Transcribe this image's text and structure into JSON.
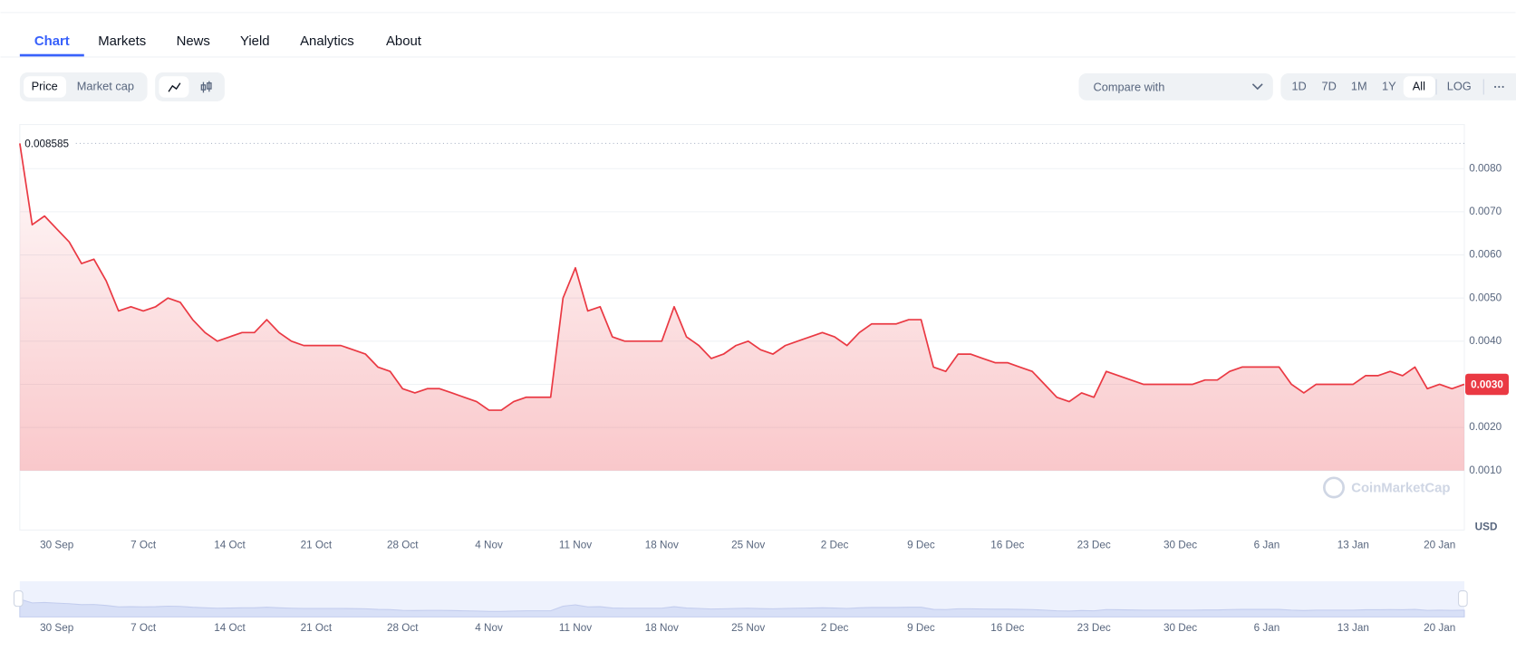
{
  "nav": {
    "tabs": [
      "Chart",
      "Markets",
      "News",
      "Yield",
      "Analytics",
      "About"
    ],
    "active": 0
  },
  "toolbar": {
    "modes": [
      "Price",
      "Market cap"
    ],
    "active_mode": 0,
    "compare": "Compare with",
    "ranges": [
      "1D",
      "7D",
      "1M",
      "1Y",
      "All"
    ],
    "active_range": 4,
    "log": "LOG"
  },
  "watermark": "CoinMarketCap",
  "chart_data": {
    "type": "line",
    "color": "#ea3943",
    "y_unit": "USD",
    "max_label": 0.008585,
    "current_price": {
      "value": 0.003,
      "label": "0.0030"
    },
    "ylim": [
      -0.0004,
      0.009
    ],
    "yticks": [
      {
        "value": 0.001,
        "label": "0.0010"
      },
      {
        "value": 0.002,
        "label": "0.0020"
      },
      {
        "value": 0.003,
        "label": "0.0030"
      },
      {
        "value": 0.004,
        "label": "0.0040"
      },
      {
        "value": 0.005,
        "label": "0.0050"
      },
      {
        "value": 0.006,
        "label": "0.0060"
      },
      {
        "value": 0.007,
        "label": "0.0070"
      },
      {
        "value": 0.008,
        "label": "0.0080"
      }
    ],
    "grid": true,
    "xticks": [
      "30 Sep",
      "7 Oct",
      "14 Oct",
      "21 Oct",
      "28 Oct",
      "4 Nov",
      "11 Nov",
      "18 Nov",
      "25 Nov",
      "2 Dec",
      "9 Dec",
      "16 Dec",
      "23 Dec",
      "30 Dec",
      "6 Jan",
      "13 Jan",
      "20 Jan"
    ],
    "x": [
      "27 Sep",
      "28 Sep",
      "29 Sep",
      "30 Sep",
      "1 Oct",
      "2 Oct",
      "3 Oct",
      "4 Oct",
      "5 Oct",
      "6 Oct",
      "7 Oct",
      "8 Oct",
      "9 Oct",
      "10 Oct",
      "11 Oct",
      "12 Oct",
      "13 Oct",
      "14 Oct",
      "15 Oct",
      "16 Oct",
      "17 Oct",
      "18 Oct",
      "19 Oct",
      "20 Oct",
      "21 Oct",
      "22 Oct",
      "23 Oct",
      "24 Oct",
      "25 Oct",
      "26 Oct",
      "27 Oct",
      "28 Oct",
      "29 Oct",
      "30 Oct",
      "31 Oct",
      "1 Nov",
      "2 Nov",
      "3 Nov",
      "4 Nov",
      "5 Nov",
      "6 Nov",
      "7 Nov",
      "8 Nov",
      "9 Nov",
      "10 Nov",
      "11 Nov",
      "12 Nov",
      "13 Nov",
      "14 Nov",
      "15 Nov",
      "16 Nov",
      "17 Nov",
      "18 Nov",
      "19 Nov",
      "20 Nov",
      "21 Nov",
      "22 Nov",
      "23 Nov",
      "24 Nov",
      "25 Nov",
      "26 Nov",
      "27 Nov",
      "28 Nov",
      "29 Nov",
      "30 Nov",
      "1 Dec",
      "2 Dec",
      "3 Dec",
      "4 Dec",
      "5 Dec",
      "6 Dec",
      "7 Dec",
      "8 Dec",
      "9 Dec",
      "10 Dec",
      "11 Dec",
      "12 Dec",
      "13 Dec",
      "14 Dec",
      "15 Dec",
      "16 Dec",
      "17 Dec",
      "18 Dec",
      "19 Dec",
      "20 Dec",
      "21 Dec",
      "22 Dec",
      "23 Dec",
      "24 Dec",
      "25 Dec",
      "26 Dec",
      "27 Dec",
      "28 Dec",
      "29 Dec",
      "30 Dec",
      "31 Dec",
      "1 Jan",
      "2 Jan",
      "3 Jan",
      "4 Jan",
      "5 Jan",
      "6 Jan",
      "7 Jan",
      "8 Jan",
      "9 Jan",
      "10 Jan",
      "11 Jan",
      "12 Jan",
      "13 Jan",
      "14 Jan",
      "15 Jan",
      "16 Jan",
      "17 Jan",
      "18 Jan",
      "19 Jan",
      "20 Jan",
      "21 Jan",
      "22 Jan"
    ],
    "values": [
      0.008585,
      0.0067,
      0.0069,
      0.0066,
      0.0063,
      0.0058,
      0.0059,
      0.0054,
      0.0047,
      0.0048,
      0.0047,
      0.0048,
      0.005,
      0.0049,
      0.0045,
      0.0042,
      0.004,
      0.0041,
      0.0042,
      0.0042,
      0.0045,
      0.0042,
      0.004,
      0.0039,
      0.0039,
      0.0039,
      0.0039,
      0.0038,
      0.0037,
      0.0034,
      0.0033,
      0.0029,
      0.0028,
      0.0029,
      0.0029,
      0.0028,
      0.0027,
      0.0026,
      0.0024,
      0.0024,
      0.0026,
      0.0027,
      0.0027,
      0.0027,
      0.005,
      0.0057,
      0.0047,
      0.0048,
      0.0041,
      0.004,
      0.004,
      0.004,
      0.004,
      0.0048,
      0.0041,
      0.0039,
      0.0036,
      0.0037,
      0.0039,
      0.004,
      0.0038,
      0.0037,
      0.0039,
      0.004,
      0.0041,
      0.0042,
      0.0041,
      0.0039,
      0.0042,
      0.0044,
      0.0044,
      0.0044,
      0.0045,
      0.0045,
      0.0034,
      0.0033,
      0.0037,
      0.0037,
      0.0036,
      0.0035,
      0.0035,
      0.0034,
      0.0033,
      0.003,
      0.0027,
      0.0026,
      0.0028,
      0.0027,
      0.0033,
      0.0032,
      0.0031,
      0.003,
      0.003,
      0.003,
      0.003,
      0.003,
      0.0031,
      0.0031,
      0.0033,
      0.0034,
      0.0034,
      0.0034,
      0.0034,
      0.003,
      0.0028,
      0.003,
      0.003,
      0.003,
      0.003,
      0.0032,
      0.0032,
      0.0033,
      0.0032,
      0.0034,
      0.0029,
      0.003,
      0.0029,
      0.003
    ]
  }
}
